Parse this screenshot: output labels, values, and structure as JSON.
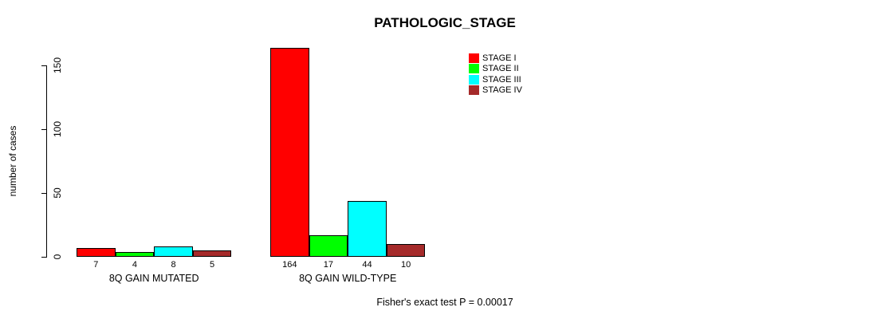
{
  "chart_data": {
    "type": "bar",
    "title": "PATHOLOGIC_STAGE",
    "ylabel": "number of cases",
    "xlabel": "",
    "footer": "Fisher's exact test P = 0.00017",
    "categories": [
      "8Q GAIN MUTATED",
      "8Q GAIN WILD-TYPE"
    ],
    "series": [
      {
        "name": "STAGE I",
        "color": "#FF0000",
        "values": [
          7,
          164
        ]
      },
      {
        "name": "STAGE II",
        "color": "#00FF00",
        "values": [
          4,
          17
        ]
      },
      {
        "name": "STAGE III",
        "color": "#00FFFF",
        "values": [
          8,
          44
        ]
      },
      {
        "name": "STAGE IV",
        "color": "#A52A2A",
        "values": [
          5,
          10
        ]
      }
    ],
    "yticks": [
      0,
      50,
      100,
      150
    ],
    "ylim": [
      0,
      168
    ],
    "grid": false,
    "legend_position": "top-right",
    "legend_entries": [
      "STAGE I",
      "STAGE II",
      "STAGE III",
      "STAGE IV"
    ]
  }
}
